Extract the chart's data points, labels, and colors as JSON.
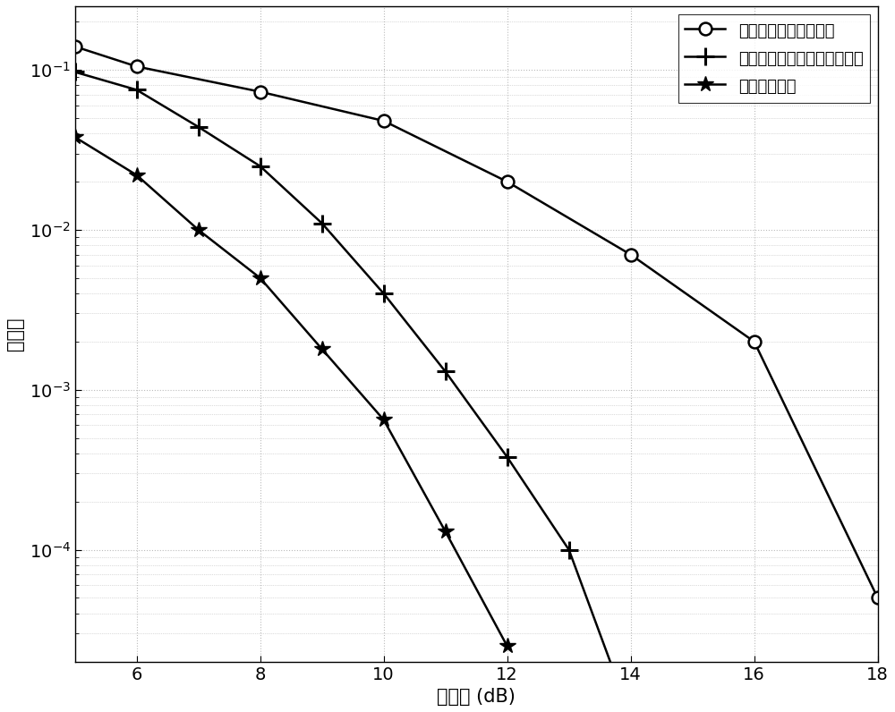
{
  "title": "",
  "xlabel": "信噪比 (dB)",
  "ylabel": "误码率",
  "xlim": [
    5,
    18
  ],
  "ylim": [
    2e-05,
    0.25
  ],
  "xticks": [
    6,
    8,
    10,
    12,
    14,
    16,
    18
  ],
  "series": [
    {
      "label": "传统的非相干解调算法",
      "marker": "o",
      "x": [
        5,
        6,
        8,
        10,
        12,
        14,
        16,
        18
      ],
      "y": [
        0.14,
        0.105,
        0.073,
        0.048,
        0.02,
        0.007,
        0.002,
        5e-05
      ]
    },
    {
      "label": "本发明提出的非相干解调算法",
      "marker": "+",
      "x": [
        5,
        6,
        7,
        8,
        9,
        10,
        11,
        12,
        13,
        14
      ],
      "y": [
        0.097,
        0.075,
        0.044,
        0.025,
        0.011,
        0.004,
        0.0013,
        0.00038,
        0.0001,
        9e-06
      ]
    },
    {
      "label": "相干解调算法",
      "marker": "*",
      "x": [
        5,
        6,
        7,
        8,
        9,
        10,
        11,
        12
      ],
      "y": [
        0.038,
        0.022,
        0.01,
        0.005,
        0.0018,
        0.00065,
        0.00013,
        2.5e-05
      ]
    }
  ],
  "line_color": "black",
  "background_color": "white",
  "grid_color": "#bbbbbb",
  "legend_loc": "upper right",
  "font_size": 15,
  "tick_font_size": 14,
  "legend_font_size": 13
}
